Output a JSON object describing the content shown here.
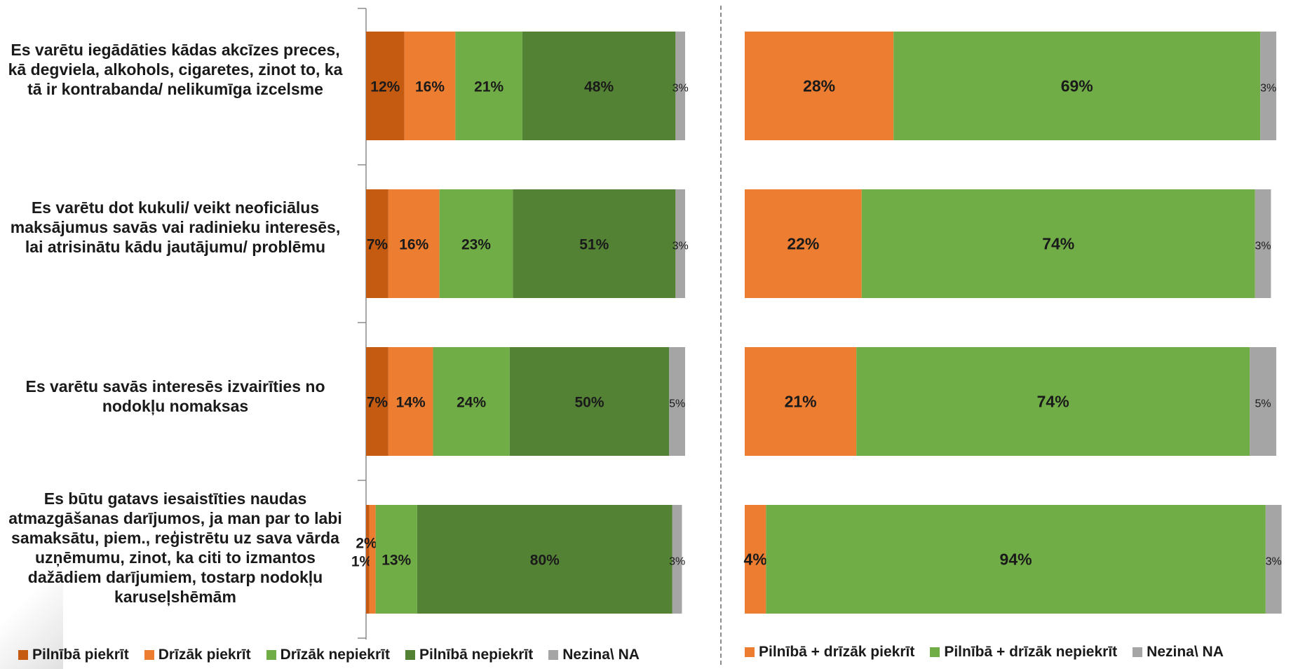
{
  "categories": [
    "Es varētu iegādāties kādas akcīzes preces, kā degviela, alkohols, cigaretes, zinot to, ka tā ir kontrabanda/ nelikumīga izcelsme",
    "Es varētu dot kukuli/ veikt neoficiālus maksājumus savās vai radinieku interesēs, lai atrisinātu kādu jautājumu/ problēmu",
    "Es varētu savās interesēs izvairīties no nodokļu nomaksas",
    "Es būtu gatavs iesaistīties naudas atmazgāšanas darījumos, ja man par to labi samaksātu, piem., reģistrētu uz sava vārda uzņēmumu, zinot, ka citi to izmantos  dažādiem darījumiem, tostarp nodokļu karuseļshēmām"
  ],
  "colors": {
    "dark_orange": "#c55a11",
    "orange": "#ed7d31",
    "light_green": "#70ad47",
    "dark_green": "#548235",
    "grey": "#a5a5a5",
    "divider": "#8c8c8c"
  },
  "chart_data": [
    {
      "type": "bar",
      "orientation": "horizontal",
      "stacked": "percent",
      "xlim": [
        0,
        100
      ],
      "categories": [
        "Es varētu iegādāties kādas akcīzes preces, kā degviela, alkohols, cigaretes, zinot to, ka tā ir kontrabanda/ nelikumīga izcelsme",
        "Es varētu dot kukuli/ veikt neoficiālus maksājumus savās vai radinieku interesēs, lai atrisinātu kādu jautājumu/ problēmu",
        "Es varētu savās interesēs izvairīties no nodokļu nomaksas",
        "Es būtu gatavs iesaistīties naudas atmazgāšanas darījumos, ja man par to labi samaksātu, piem., reģistrētu uz sava vārda uzņēmumu, zinot, ka citi to izmantos  dažādiem darījumiem, tostarp nodokļu karuseļshēmām"
      ],
      "series": [
        {
          "name": "Pilnībā piekrīt",
          "color": "#c55a11",
          "values": [
            12,
            7,
            7,
            1
          ],
          "labels": [
            "12%",
            "7%",
            "7%",
            "1%"
          ]
        },
        {
          "name": "Drīzāk piekrīt",
          "color": "#ed7d31",
          "values": [
            16,
            16,
            14,
            2
          ],
          "labels": [
            "16%",
            "16%",
            "14%",
            "2%"
          ]
        },
        {
          "name": "Drīzāk nepiekrīt",
          "color": "#70ad47",
          "values": [
            21,
            23,
            24,
            13
          ],
          "labels": [
            "21%",
            "23%",
            "24%",
            "13%"
          ]
        },
        {
          "name": "Pilnībā nepiekrīt",
          "color": "#548235",
          "values": [
            48,
            51,
            50,
            80
          ],
          "labels": [
            "48%",
            "51%",
            "50%",
            "80%"
          ]
        },
        {
          "name": "Nezina\\ NA",
          "color": "#a5a5a5",
          "values": [
            3,
            3,
            5,
            3
          ],
          "labels": [
            "3%",
            "3%",
            "5%",
            "3%"
          ]
        }
      ],
      "legend_position": "bottom"
    },
    {
      "type": "bar",
      "orientation": "horizontal",
      "stacked": "percent",
      "xlim": [
        0,
        100
      ],
      "categories": [
        "Es varētu iegādāties kādas akcīzes preces, kā degviela, alkohols, cigaretes, zinot to, ka tā ir kontrabanda/ nelikumīga izcelsme",
        "Es varētu dot kukuli/ veikt neoficiālus maksājumus savās vai radinieku interesēs, lai atrisinātu kādu jautājumu/ problēmu",
        "Es varētu savās interesēs izvairīties no nodokļu nomaksas",
        "Es būtu gatavs iesaistīties naudas atmazgāšanas darījumos, ja man par to labi samaksātu, piem., reģistrētu uz sava vārda uzņēmumu, zinot, ka citi to izmantos  dažādiem darījumiem, tostarp nodokļu karuseļshēmām"
      ],
      "series": [
        {
          "name": "Pilnībā + drīzāk piekrīt",
          "color": "#ed7d31",
          "values": [
            28,
            22,
            21,
            4
          ],
          "labels": [
            "28%",
            "22%",
            "21%",
            "4%"
          ]
        },
        {
          "name": "Pilnībā + drīzāk nepiekrīt",
          "color": "#70ad47",
          "values": [
            69,
            74,
            74,
            94
          ],
          "labels": [
            "69%",
            "74%",
            "74%",
            "94%"
          ]
        },
        {
          "name": "Nezina\\ NA",
          "color": "#a5a5a5",
          "values": [
            3,
            3,
            5,
            3
          ],
          "labels": [
            "3%",
            "3%",
            "5%",
            "3%"
          ]
        }
      ],
      "legend_position": "bottom"
    }
  ]
}
